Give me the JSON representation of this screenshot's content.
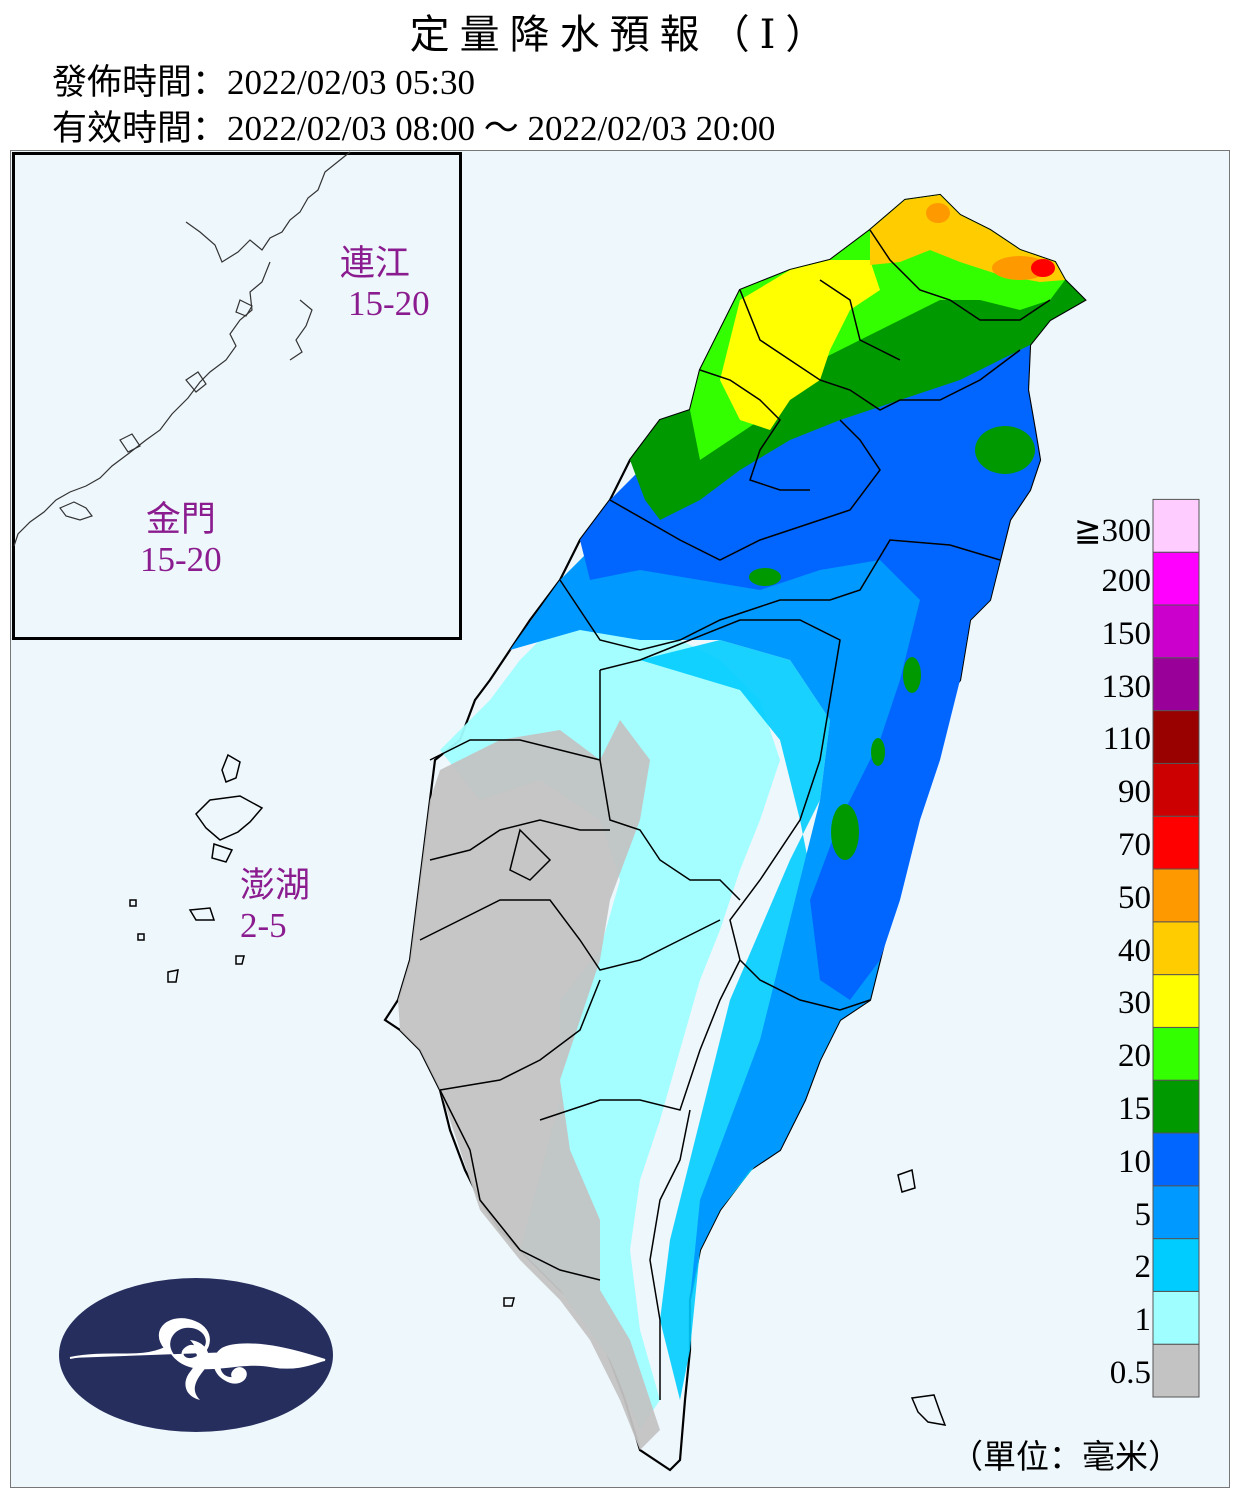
{
  "header": {
    "title": "定量降水預報（Ⅰ）",
    "issue_label": "發佈時間：",
    "issue_time": "2022/02/03 05:30",
    "valid_label": "有效時間：",
    "valid_time": "2022/02/03 08:00 ～ 2022/02/03 20:00"
  },
  "regions": {
    "lienchiang": {
      "name": "連江",
      "range": "15-20"
    },
    "kinmen": {
      "name": "金門",
      "range": "15-20"
    },
    "penghu": {
      "name": "澎湖",
      "range": "2-5"
    }
  },
  "legend": {
    "levels": [
      {
        "label": "0.5",
        "color": "#c3c3c3"
      },
      {
        "label": "1",
        "color": "#9ffeff"
      },
      {
        "label": "2",
        "color": "#00ccff"
      },
      {
        "label": "5",
        "color": "#0099ff"
      },
      {
        "label": "10",
        "color": "#0066ff"
      },
      {
        "label": "15",
        "color": "#009900"
      },
      {
        "label": "20",
        "color": "#33ff00"
      },
      {
        "label": "30",
        "color": "#ffff00"
      },
      {
        "label": "40",
        "color": "#ffcc00"
      },
      {
        "label": "50",
        "color": "#ff9900"
      },
      {
        "label": "70",
        "color": "#ff0000"
      },
      {
        "label": "90",
        "color": "#cc0000"
      },
      {
        "label": "110",
        "color": "#990000"
      },
      {
        "label": "130",
        "color": "#990099"
      },
      {
        "label": "150",
        "color": "#cc00cc"
      },
      {
        "label": "200",
        "color": "#ff00ff"
      },
      {
        "label": "≧300",
        "color": "#ffccff"
      }
    ],
    "unit": "（單位：毫米）"
  },
  "logo": {
    "icon": "cwb-cloud-logo-icon",
    "color": "#262e5e"
  }
}
